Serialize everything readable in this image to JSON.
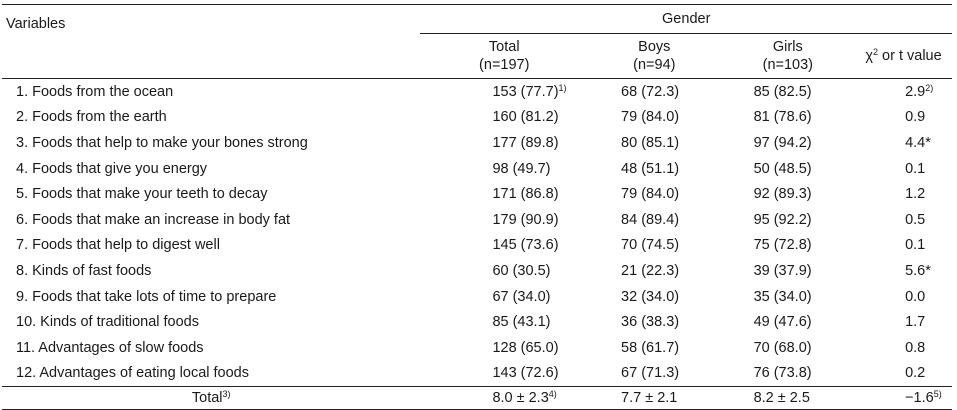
{
  "header": {
    "variables_label": "Variables",
    "gender_label": "Gender",
    "columns": [
      {
        "name": "Total",
        "n": "(n=197)"
      },
      {
        "name": "Boys",
        "n": "(n=94)"
      },
      {
        "name": "Girls",
        "n": "(n=103)"
      }
    ],
    "stat_label_prefix": "χ",
    "stat_label_sup": "2",
    "stat_label_suffix": " or t value"
  },
  "rows": [
    {
      "label": "1. Foods from the ocean",
      "total": "153 (77.7)",
      "total_sup": "1)",
      "boys": "68 (72.3)",
      "girls": "85 (82.5)",
      "stat": "2.9",
      "stat_sup": "2)"
    },
    {
      "label": "2. Foods from the earth",
      "total": "160 (81.2)",
      "total_sup": "",
      "boys": "79 (84.0)",
      "girls": "81 (78.6)",
      "stat": "0.9",
      "stat_sup": ""
    },
    {
      "label": "3. Foods that help to make your bones strong",
      "total": "177 (89.8)",
      "total_sup": "",
      "boys": "80 (85.1)",
      "girls": "97 (94.2)",
      "stat": "4.4*",
      "stat_sup": ""
    },
    {
      "label": "4. Foods that give you energy",
      "total": "98 (49.7)",
      "total_sup": "",
      "boys": "48 (51.1)",
      "girls": "50 (48.5)",
      "stat": "0.1",
      "stat_sup": ""
    },
    {
      "label": "5. Foods that make your teeth to decay",
      "total": "171 (86.8)",
      "total_sup": "",
      "boys": "79 (84.0)",
      "girls": "92 (89.3)",
      "stat": "1.2",
      "stat_sup": ""
    },
    {
      "label": "6. Foods that make an increase in body fat",
      "total": "179 (90.9)",
      "total_sup": "",
      "boys": "84 (89.4)",
      "girls": "95 (92.2)",
      "stat": "0.5",
      "stat_sup": ""
    },
    {
      "label": "7. Foods that help to digest well",
      "total": "145 (73.6)",
      "total_sup": "",
      "boys": "70 (74.5)",
      "girls": "75 (72.8)",
      "stat": "0.1",
      "stat_sup": ""
    },
    {
      "label": "8. Kinds of fast foods",
      "total": "60 (30.5)",
      "total_sup": "",
      "boys": "21 (22.3)",
      "girls": "39 (37.9)",
      "stat": "5.6*",
      "stat_sup": ""
    },
    {
      "label": "9. Foods that take lots of time to prepare",
      "total": "67 (34.0)",
      "total_sup": "",
      "boys": "32 (34.0)",
      "girls": "35 (34.0)",
      "stat": "0.0",
      "stat_sup": ""
    },
    {
      "label": "10. Kinds of traditional foods",
      "total": "85 (43.1)",
      "total_sup": "",
      "boys": "36 (38.3)",
      "girls": "49 (47.6)",
      "stat": "1.7",
      "stat_sup": ""
    },
    {
      "label": "11. Advantages of slow foods",
      "total": "128 (65.0)",
      "total_sup": "",
      "boys": "58 (61.7)",
      "girls": "70 (68.0)",
      "stat": "0.8",
      "stat_sup": ""
    },
    {
      "label": "12. Advantages of eating local foods",
      "total": "143 (72.6)",
      "total_sup": "",
      "boys": "67 (71.3)",
      "girls": "76 (73.8)",
      "stat": "0.2",
      "stat_sup": ""
    }
  ],
  "total_row": {
    "label": "Total",
    "label_sup": "3)",
    "total": "8.0 ± 2.3",
    "total_sup": "4)",
    "boys": "7.7 ± 2.1",
    "girls": "8.2 ± 2.5",
    "stat": "−1.6",
    "stat_sup": "5)"
  }
}
